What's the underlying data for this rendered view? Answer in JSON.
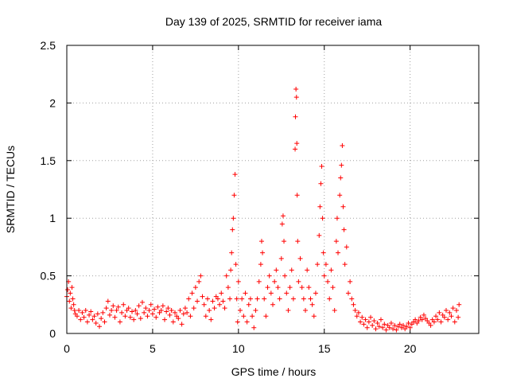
{
  "chart_data": {
    "type": "scatter",
    "title": "Day 139 of 2025, SRMTID for receiver iama",
    "xlabel": "GPS time / hours",
    "ylabel": "SRMTID / TECUs",
    "xlim": [
      0,
      24
    ],
    "ylim": [
      0,
      2.5
    ],
    "xticks": [
      0,
      5,
      10,
      15,
      20
    ],
    "xtick_labels": [
      "0",
      "5",
      "10",
      "15",
      "20"
    ],
    "yticks": [
      0,
      0.5,
      1,
      1.5,
      2,
      2.5
    ],
    "ytick_labels": [
      "0",
      "0.5",
      "1",
      "1.5",
      "2",
      "2.5"
    ],
    "grid": true,
    "marker": "+",
    "color": "#ff0000",
    "series": [
      {
        "name": "SRMTID",
        "points": [
          [
            0.0,
            0.32
          ],
          [
            0.05,
            0.38
          ],
          [
            0.1,
            0.45
          ],
          [
            0.15,
            0.28
          ],
          [
            0.2,
            0.35
          ],
          [
            0.25,
            0.22
          ],
          [
            0.3,
            0.4
          ],
          [
            0.35,
            0.3
          ],
          [
            0.4,
            0.25
          ],
          [
            0.45,
            0.2
          ],
          [
            0.5,
            0.17
          ],
          [
            0.6,
            0.15
          ],
          [
            0.7,
            0.2
          ],
          [
            0.8,
            0.12
          ],
          [
            0.9,
            0.18
          ],
          [
            1.0,
            0.14
          ],
          [
            1.1,
            0.2
          ],
          [
            1.2,
            0.1
          ],
          [
            1.3,
            0.16
          ],
          [
            1.4,
            0.19
          ],
          [
            1.5,
            0.12
          ],
          [
            1.6,
            0.15
          ],
          [
            1.7,
            0.09
          ],
          [
            1.8,
            0.17
          ],
          [
            1.9,
            0.06
          ],
          [
            2.0,
            0.13
          ],
          [
            2.1,
            0.18
          ],
          [
            2.2,
            0.1
          ],
          [
            2.3,
            0.22
          ],
          [
            2.4,
            0.28
          ],
          [
            2.5,
            0.16
          ],
          [
            2.6,
            0.2
          ],
          [
            2.7,
            0.24
          ],
          [
            2.8,
            0.14
          ],
          [
            2.9,
            0.2
          ],
          [
            3.0,
            0.23
          ],
          [
            3.1,
            0.1
          ],
          [
            3.2,
            0.18
          ],
          [
            3.3,
            0.25
          ],
          [
            3.4,
            0.15
          ],
          [
            3.5,
            0.2
          ],
          [
            3.6,
            0.22
          ],
          [
            3.7,
            0.14
          ],
          [
            3.8,
            0.19
          ],
          [
            3.9,
            0.12
          ],
          [
            4.0,
            0.2
          ],
          [
            4.1,
            0.17
          ],
          [
            4.2,
            0.24
          ],
          [
            4.3,
            0.13
          ],
          [
            4.4,
            0.27
          ],
          [
            4.5,
            0.18
          ],
          [
            4.6,
            0.22
          ],
          [
            4.7,
            0.15
          ],
          [
            4.8,
            0.2
          ],
          [
            4.9,
            0.25
          ],
          [
            5.0,
            0.17
          ],
          [
            5.1,
            0.21
          ],
          [
            5.2,
            0.14
          ],
          [
            5.3,
            0.23
          ],
          [
            5.4,
            0.18
          ],
          [
            5.5,
            0.2
          ],
          [
            5.6,
            0.24
          ],
          [
            5.7,
            0.12
          ],
          [
            5.8,
            0.19
          ],
          [
            5.9,
            0.22
          ],
          [
            6.0,
            0.16
          ],
          [
            6.1,
            0.2
          ],
          [
            6.2,
            0.1
          ],
          [
            6.3,
            0.18
          ],
          [
            6.4,
            0.15
          ],
          [
            6.5,
            0.13
          ],
          [
            6.6,
            0.2
          ],
          [
            6.7,
            0.08
          ],
          [
            6.8,
            0.17
          ],
          [
            6.9,
            0.22
          ],
          [
            7.0,
            0.18
          ],
          [
            7.1,
            0.3
          ],
          [
            7.2,
            0.15
          ],
          [
            7.3,
            0.35
          ],
          [
            7.4,
            0.22
          ],
          [
            7.5,
            0.4
          ],
          [
            7.6,
            0.28
          ],
          [
            7.7,
            0.45
          ],
          [
            7.8,
            0.5
          ],
          [
            7.9,
            0.32
          ],
          [
            8.0,
            0.25
          ],
          [
            8.1,
            0.15
          ],
          [
            8.2,
            0.3
          ],
          [
            8.3,
            0.2
          ],
          [
            8.4,
            0.12
          ],
          [
            8.5,
            0.28
          ],
          [
            8.6,
            0.22
          ],
          [
            8.7,
            0.32
          ],
          [
            8.8,
            0.3
          ],
          [
            8.9,
            0.25
          ],
          [
            9.0,
            0.35
          ],
          [
            9.1,
            0.28
          ],
          [
            9.2,
            0.22
          ],
          [
            9.3,
            0.5
          ],
          [
            9.4,
            0.4
          ],
          [
            9.5,
            0.3
          ],
          [
            9.55,
            0.55
          ],
          [
            9.6,
            0.7
          ],
          [
            9.65,
            0.9
          ],
          [
            9.7,
            1.0
          ],
          [
            9.75,
            1.2
          ],
          [
            9.8,
            1.38
          ],
          [
            9.85,
            0.6
          ],
          [
            9.9,
            0.3
          ],
          [
            9.95,
            0.1
          ],
          [
            10.0,
            0.45
          ],
          [
            10.1,
            0.2
          ],
          [
            10.2,
            0.3
          ],
          [
            10.3,
            0.15
          ],
          [
            10.4,
            0.35
          ],
          [
            10.5,
            0.1
          ],
          [
            10.6,
            0.25
          ],
          [
            10.7,
            0.3
          ],
          [
            10.8,
            0.15
          ],
          [
            10.9,
            0.05
          ],
          [
            11.0,
            0.2
          ],
          [
            11.1,
            0.3
          ],
          [
            11.2,
            0.45
          ],
          [
            11.3,
            0.6
          ],
          [
            11.35,
            0.8
          ],
          [
            11.4,
            0.7
          ],
          [
            11.5,
            0.3
          ],
          [
            11.6,
            0.15
          ],
          [
            11.7,
            0.4
          ],
          [
            11.8,
            0.5
          ],
          [
            11.9,
            0.35
          ],
          [
            12.0,
            0.25
          ],
          [
            12.1,
            0.45
          ],
          [
            12.2,
            0.55
          ],
          [
            12.3,
            0.4
          ],
          [
            12.4,
            0.3
          ],
          [
            12.5,
            0.65
          ],
          [
            12.55,
            0.95
          ],
          [
            12.6,
            1.02
          ],
          [
            12.65,
            0.8
          ],
          [
            12.7,
            0.5
          ],
          [
            12.8,
            0.35
          ],
          [
            12.9,
            0.2
          ],
          [
            13.0,
            0.4
          ],
          [
            13.1,
            0.55
          ],
          [
            13.2,
            0.3
          ],
          [
            13.3,
            1.6
          ],
          [
            13.32,
            1.88
          ],
          [
            13.35,
            2.12
          ],
          [
            13.38,
            2.05
          ],
          [
            13.4,
            1.65
          ],
          [
            13.42,
            1.2
          ],
          [
            13.45,
            0.8
          ],
          [
            13.5,
            0.45
          ],
          [
            13.6,
            0.65
          ],
          [
            13.7,
            0.4
          ],
          [
            13.8,
            0.3
          ],
          [
            13.9,
            0.2
          ],
          [
            14.0,
            0.55
          ],
          [
            14.1,
            0.4
          ],
          [
            14.2,
            0.3
          ],
          [
            14.3,
            0.25
          ],
          [
            14.4,
            0.15
          ],
          [
            14.5,
            0.35
          ],
          [
            14.6,
            0.6
          ],
          [
            14.7,
            0.85
          ],
          [
            14.75,
            1.1
          ],
          [
            14.8,
            1.3
          ],
          [
            14.85,
            1.45
          ],
          [
            14.9,
            1.0
          ],
          [
            14.95,
            0.7
          ],
          [
            15.0,
            0.5
          ],
          [
            15.1,
            0.6
          ],
          [
            15.2,
            0.45
          ],
          [
            15.3,
            0.3
          ],
          [
            15.4,
            0.55
          ],
          [
            15.5,
            0.4
          ],
          [
            15.6,
            0.2
          ],
          [
            15.7,
            0.8
          ],
          [
            15.75,
            1.0
          ],
          [
            15.8,
            0.7
          ],
          [
            15.9,
            1.2
          ],
          [
            15.95,
            1.35
          ],
          [
            16.0,
            1.46
          ],
          [
            16.05,
            1.63
          ],
          [
            16.1,
            1.1
          ],
          [
            16.15,
            0.9
          ],
          [
            16.2,
            0.6
          ],
          [
            16.3,
            0.75
          ],
          [
            16.4,
            0.35
          ],
          [
            16.5,
            0.45
          ],
          [
            16.6,
            0.3
          ],
          [
            16.7,
            0.25
          ],
          [
            16.8,
            0.2
          ],
          [
            16.9,
            0.15
          ],
          [
            17.0,
            0.18
          ],
          [
            17.1,
            0.1
          ],
          [
            17.2,
            0.14
          ],
          [
            17.3,
            0.08
          ],
          [
            17.4,
            0.12
          ],
          [
            17.5,
            0.05
          ],
          [
            17.6,
            0.1
          ],
          [
            17.7,
            0.14
          ],
          [
            17.8,
            0.07
          ],
          [
            17.9,
            0.11
          ],
          [
            18.0,
            0.04
          ],
          [
            18.1,
            0.09
          ],
          [
            18.2,
            0.06
          ],
          [
            18.3,
            0.12
          ],
          [
            18.4,
            0.05
          ],
          [
            18.5,
            0.08
          ],
          [
            18.6,
            0.03
          ],
          [
            18.7,
            0.07
          ],
          [
            18.8,
            0.05
          ],
          [
            18.9,
            0.09
          ],
          [
            19.0,
            0.04
          ],
          [
            19.1,
            0.07
          ],
          [
            19.2,
            0.03
          ],
          [
            19.3,
            0.06
          ],
          [
            19.4,
            0.08
          ],
          [
            19.5,
            0.05
          ],
          [
            19.6,
            0.07
          ],
          [
            19.7,
            0.04
          ],
          [
            19.8,
            0.06
          ],
          [
            19.9,
            0.09
          ],
          [
            20.0,
            0.05
          ],
          [
            20.1,
            0.08
          ],
          [
            20.2,
            0.1
          ],
          [
            20.3,
            0.12
          ],
          [
            20.4,
            0.09
          ],
          [
            20.5,
            0.11
          ],
          [
            20.6,
            0.14
          ],
          [
            20.7,
            0.12
          ],
          [
            20.8,
            0.16
          ],
          [
            20.9,
            0.13
          ],
          [
            21.0,
            0.11
          ],
          [
            21.1,
            0.09
          ],
          [
            21.2,
            0.07
          ],
          [
            21.3,
            0.12
          ],
          [
            21.4,
            0.1
          ],
          [
            21.5,
            0.15
          ],
          [
            21.6,
            0.12
          ],
          [
            21.7,
            0.18
          ],
          [
            21.8,
            0.1
          ],
          [
            21.9,
            0.16
          ],
          [
            22.0,
            0.14
          ],
          [
            22.1,
            0.2
          ],
          [
            22.2,
            0.12
          ],
          [
            22.3,
            0.18
          ],
          [
            22.4,
            0.15
          ],
          [
            22.5,
            0.22
          ],
          [
            22.6,
            0.1
          ],
          [
            22.7,
            0.2
          ],
          [
            22.8,
            0.14
          ],
          [
            22.85,
            0.25
          ]
        ]
      }
    ]
  }
}
